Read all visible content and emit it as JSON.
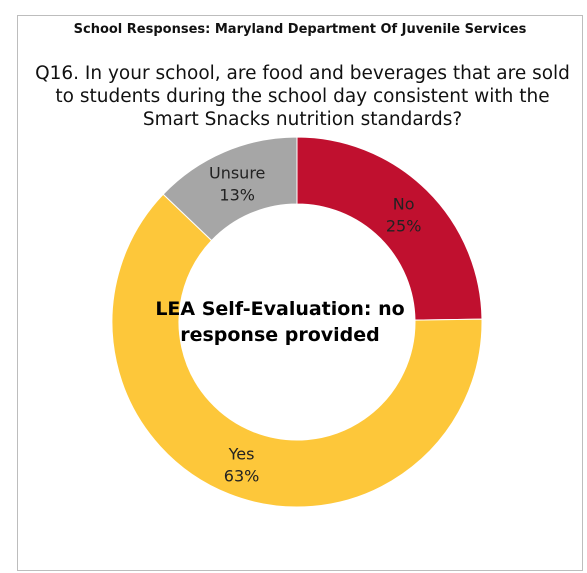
{
  "title": "School Responses: Maryland Department Of Juvenile Services",
  "subtitle": "Q16. In your school, are food and beverages that are sold to students during the school day consistent with the Smart Snacks nutrition standards?",
  "center_text": "LEA Self-Evaluation: no response provided",
  "colors": {
    "No": "#c0102f",
    "Yes": "#fdc73a",
    "Unsure": "#a6a6a6",
    "border": "#bdbdbd"
  },
  "chart_data": {
    "type": "pie",
    "donut": true,
    "title": "School Responses: Maryland Department Of Juvenile Services",
    "subtitle": "Q16. In your school, are food and beverages that are sold to students during the school day consistent with the Smart Snacks nutrition standards?",
    "categories": [
      "No",
      "Yes",
      "Unsure"
    ],
    "values": [
      25,
      63,
      13
    ],
    "value_labels": [
      "25%",
      "63%",
      "13%"
    ],
    "legend": "none"
  }
}
